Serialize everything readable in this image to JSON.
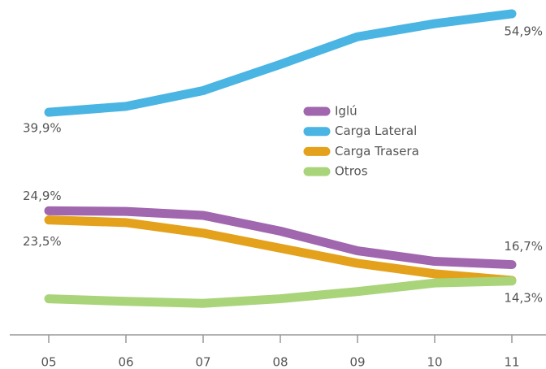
{
  "chart_data": {
    "type": "line",
    "categories": [
      "05",
      "06",
      "07",
      "08",
      "09",
      "10",
      "11"
    ],
    "ylim": [
      6,
      57
    ],
    "legend": "center",
    "series": [
      {
        "name": "Iglú",
        "color": "#a066ae",
        "values": [
          24.9,
          24.8,
          24.2,
          21.8,
          18.8,
          17.2,
          16.7
        ],
        "value_labels": [
          "24,9%",
          null,
          null,
          null,
          null,
          null,
          "16,7%"
        ]
      },
      {
        "name": "Carga Lateral",
        "color": "#4ab4e2",
        "values": [
          39.9,
          40.8,
          43.2,
          47.2,
          51.4,
          53.4,
          54.9
        ],
        "value_labels": [
          "39,9%",
          null,
          null,
          null,
          null,
          null,
          "54,9%"
        ]
      },
      {
        "name": "Carga Trasera",
        "color": "#e4a11b",
        "values": [
          23.5,
          23.1,
          21.5,
          19.2,
          16.9,
          15.3,
          14.3
        ],
        "value_labels": [
          "23,5%",
          null,
          null,
          null,
          null,
          null,
          "14,3%"
        ]
      },
      {
        "name": "Otros",
        "color": "#a9d47a",
        "values": [
          11.5,
          11.1,
          10.8,
          11.5,
          12.6,
          13.9,
          14.2
        ]
      }
    ]
  }
}
